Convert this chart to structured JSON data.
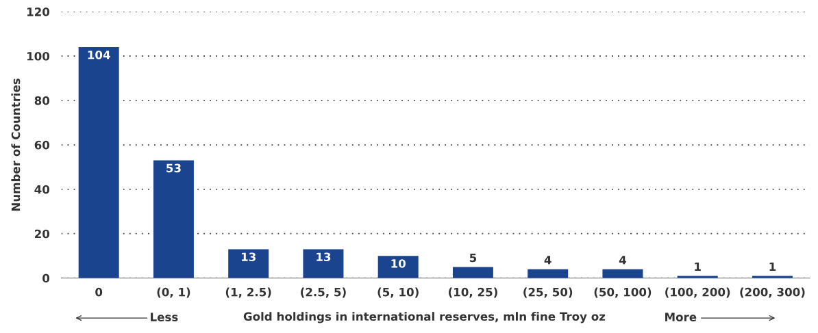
{
  "chart_data": {
    "type": "bar",
    "categories": [
      "0",
      "(0, 1)",
      "(1, 2.5)",
      "(2.5, 5)",
      "(5, 10)",
      "(10, 25)",
      "(25, 50)",
      "(50, 100)",
      "(100, 200)",
      "(200, 300)"
    ],
    "values": [
      104,
      53,
      13,
      13,
      10,
      5,
      4,
      4,
      1,
      1
    ],
    "color": "#1b448f",
    "ylabel": "Number of Countries",
    "xlabel": "Gold holdings in international reserves, mln fine Troy oz",
    "annotations": [
      "Less",
      "More"
    ],
    "ylim": [
      0,
      120
    ],
    "yticks": [
      0,
      20,
      40,
      60,
      80,
      100,
      120
    ],
    "grid": "y",
    "data_labels": true
  }
}
